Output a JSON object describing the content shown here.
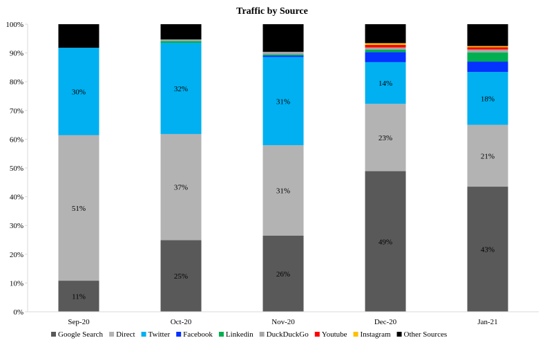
{
  "chart_data": {
    "type": "bar",
    "stacked": true,
    "title": "Traffic by Source",
    "xlabel": "",
    "ylabel": "",
    "ylim": [
      0,
      100
    ],
    "y_ticks": [
      "0%",
      "10%",
      "20%",
      "30%",
      "40%",
      "50%",
      "60%",
      "70%",
      "80%",
      "90%",
      "100%"
    ],
    "categories": [
      "Sep-20",
      "Oct-20",
      "Nov-20",
      "Dec-20",
      "Jan-21"
    ],
    "grid": false,
    "legend_position": "bottom",
    "series": [
      {
        "name": "Google Search",
        "color": "#595959",
        "values": [
          10.8,
          24.9,
          26.5,
          48.9,
          43.5
        ],
        "labels": [
          "11%",
          "25%",
          "26%",
          "49%",
          "43%"
        ]
      },
      {
        "name": "Direct",
        "color": "#b3b3b3",
        "values": [
          50.6,
          36.9,
          31.4,
          23.4,
          21.5
        ],
        "labels": [
          "51%",
          "37%",
          "31%",
          "23%",
          "21%"
        ]
      },
      {
        "name": "Twitter",
        "color": "#00b0f0",
        "values": [
          30.4,
          31.7,
          30.7,
          14.5,
          18.4
        ],
        "labels": [
          "30%",
          "32%",
          "31%",
          "14%",
          "18%"
        ]
      },
      {
        "name": "Facebook",
        "color": "#0432ff",
        "values": [
          0,
          0,
          0.5,
          3.5,
          3.6
        ],
        "labels": [
          "",
          "",
          "",
          "",
          ""
        ]
      },
      {
        "name": "Linkedin",
        "color": "#00b050",
        "values": [
          0,
          0.6,
          0.4,
          0.8,
          3.2
        ],
        "labels": [
          "",
          "",
          "",
          "",
          ""
        ]
      },
      {
        "name": "DuckDuckGo",
        "color": "#a6a6a6",
        "values": [
          0,
          0.6,
          0.9,
          0.8,
          1.0
        ],
        "labels": [
          "",
          "",
          "",
          "",
          ""
        ]
      },
      {
        "name": "Youtube",
        "color": "#ff0000",
        "values": [
          0,
          0,
          0,
          0.9,
          0.8
        ],
        "labels": [
          "",
          "",
          "",
          "",
          ""
        ]
      },
      {
        "name": "Instagram",
        "color": "#ffc000",
        "values": [
          0,
          0,
          0,
          0.6,
          0.4
        ],
        "labels": [
          "",
          "",
          "",
          "",
          ""
        ]
      },
      {
        "name": "Other Sources",
        "color": "#000000",
        "values": [
          8.2,
          5.3,
          9.6,
          6.6,
          7.6
        ],
        "labels": [
          "",
          "",
          "",
          "",
          ""
        ]
      }
    ]
  }
}
